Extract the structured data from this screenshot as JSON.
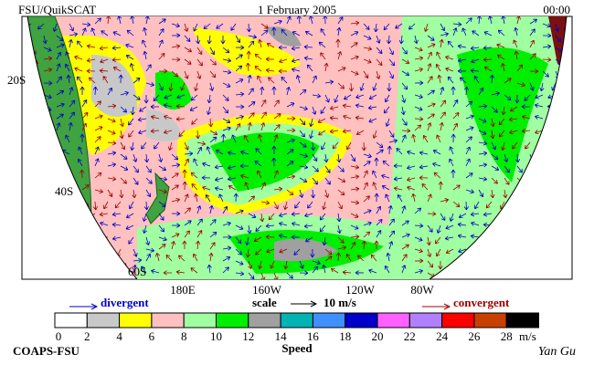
{
  "header": {
    "source": "FSU/QuikSCAT",
    "date": "1 February 2005",
    "time": "00:00"
  },
  "map": {
    "lat_labels": [
      "20S",
      "40S",
      "60S"
    ],
    "lon_labels": [
      "180E",
      "160W",
      "120W",
      "80W"
    ]
  },
  "legend": {
    "divergent": "divergent",
    "scale": "scale",
    "scale_value": "10 m/s",
    "convergent": "convergent"
  },
  "colorbar": {
    "title": "Speed",
    "unit": "m/s",
    "ticks": [
      0,
      2,
      4,
      6,
      8,
      10,
      12,
      14,
      16,
      18,
      20,
      22,
      24,
      26,
      28
    ],
    "colors": [
      "#ffffff",
      "#c8c8c8",
      "#ffff00",
      "#ffc0c0",
      "#a0ffa0",
      "#00ee00",
      "#a0a0a0",
      "#00b4b4",
      "#4090ff",
      "#0000c8",
      "#ff60ff",
      "#b080ff",
      "#ff0000",
      "#c84000",
      "#000000"
    ]
  },
  "footer": {
    "credit": "COAPS-FSU",
    "signature": "Yan Gu"
  }
}
